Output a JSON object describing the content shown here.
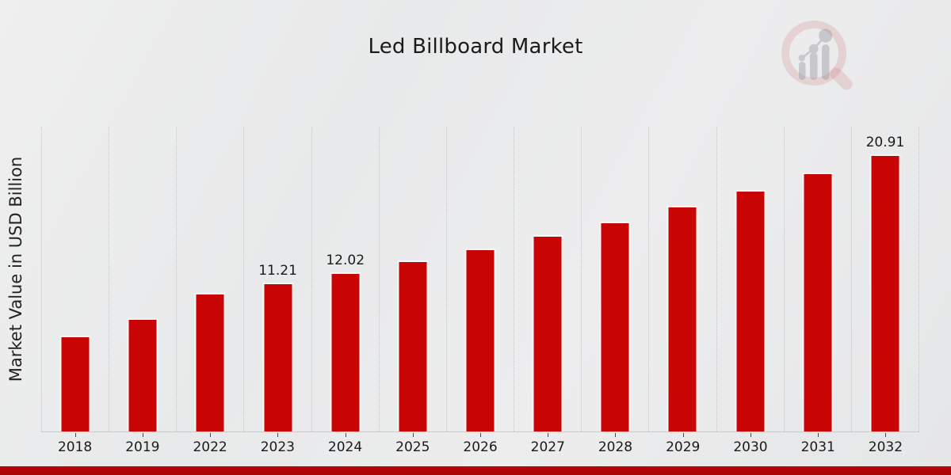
{
  "page": {
    "title": "Led Billboard Market",
    "ylabel": "Market Value in USD Billion"
  },
  "colors": {
    "bar": "#c80404",
    "bar_edge": "#f6f6f6",
    "footer_strip": "#ae0404",
    "gridline": "#c5c5c5",
    "text": "#1a1a1a",
    "watermark_pink": "#cc7777",
    "watermark_gray": "#8f8f9a"
  },
  "watermark": {
    "name": "magnifier-bar-chart-logo"
  },
  "chart_data": {
    "type": "bar",
    "title": "Led Billboard Market",
    "xlabel": "",
    "ylabel": "Market Value in USD Billion",
    "categories": [
      "2018",
      "2019",
      "2022",
      "2023",
      "2024",
      "2025",
      "2026",
      "2027",
      "2028",
      "2029",
      "2030",
      "2031",
      "2032"
    ],
    "values": [
      7.25,
      8.55,
      10.46,
      11.21,
      12.02,
      12.88,
      13.8,
      14.81,
      15.86,
      17.0,
      18.21,
      19.53,
      20.91
    ],
    "value_labels": [
      "",
      "",
      "",
      "11.21",
      "12.02",
      "",
      "",
      "",
      "",
      "",
      "",
      "",
      "20.91"
    ],
    "bar_color": "#c80404",
    "ylim": [
      0,
      23.0
    ],
    "grid": "vertical-dotted",
    "legend": "none"
  }
}
